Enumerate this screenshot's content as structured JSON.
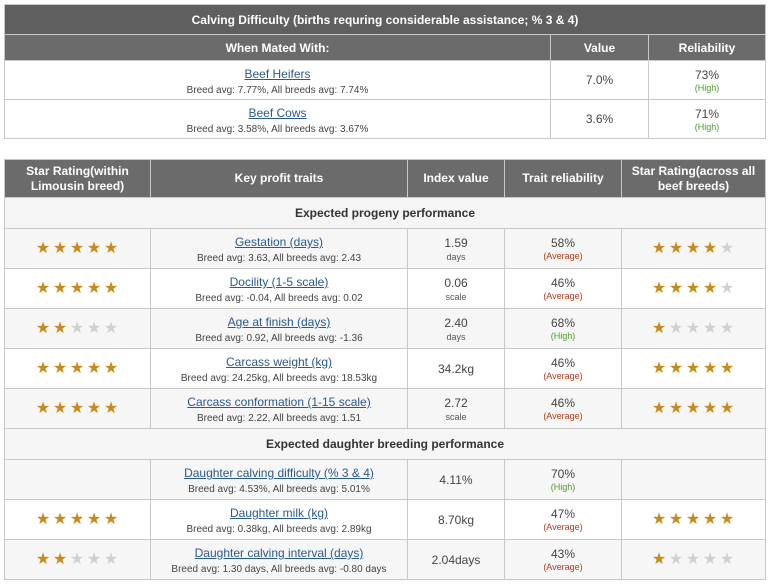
{
  "calving": {
    "title": "Calving Difficulty (births requring considerable assistance; % 3 & 4)",
    "col_mated": "When Mated With:",
    "col_value": "Value",
    "col_reliability": "Reliability",
    "rows": [
      {
        "label": "Beef Heifers",
        "avg": "Breed avg: 7.77%, All breeds avg: 7.74%",
        "value": "7.0%",
        "reliability": "73%",
        "level": "(High)"
      },
      {
        "label": "Beef Cows",
        "avg": "Breed avg: 3.58%, All breeds avg: 3.67%",
        "value": "3.6%",
        "reliability": "71%",
        "level": "(High)"
      }
    ]
  },
  "traits": {
    "col_star_within": "Star Rating",
    "col_star_within_sub": "(within Limousin breed)",
    "col_key": "Key profit traits",
    "col_index": "Index value",
    "col_reliability": "Trait reliability",
    "col_star_across": "Star Rating",
    "col_star_across_sub": "(across all beef breeds)",
    "section_progeny": "Expected progeny performance",
    "section_daughter": "Expected daughter breeding performance",
    "progeny": [
      {
        "label": "Gestation (days)",
        "avg": "Breed avg: 3.63, All breeds avg: 2.43",
        "value": "1.59",
        "unit": "days",
        "reliability": "58%",
        "level": "(Average)",
        "stars_within": 5,
        "stars_across": 4
      },
      {
        "label": "Docility (1-5 scale)",
        "avg": "Breed avg: -0.04, All breeds avg: 0.02",
        "value": "0.06",
        "unit": "scale",
        "reliability": "46%",
        "level": "(Average)",
        "stars_within": 5,
        "stars_across": 4
      },
      {
        "label": "Age at finish (days)",
        "avg": "Breed avg: 0.92, All breeds avg: -1.36",
        "value": "2.40",
        "unit": "days",
        "reliability": "68%",
        "level": "(High)",
        "stars_within": 2,
        "stars_across": 1
      },
      {
        "label": "Carcass weight (kg)",
        "avg": "Breed avg: 24.25kg, All breeds avg: 18.53kg",
        "value": "34.2kg",
        "unit": "",
        "reliability": "46%",
        "level": "(Average)",
        "stars_within": 5,
        "stars_across": 5
      },
      {
        "label": "Carcass conformation (1-15 scale)",
        "avg": "Breed avg: 2.22, All breeds avg: 1.51",
        "value": "2.72",
        "unit": "scale",
        "reliability": "46%",
        "level": "(Average)",
        "stars_within": 5,
        "stars_across": 5
      }
    ],
    "daughter": [
      {
        "label": "Daughter calving difficulty (% 3 & 4)",
        "avg": "Breed avg: 4.53%, All breeds avg: 5.01%",
        "value": "4.11%",
        "unit": "",
        "reliability": "70%",
        "level": "(High)",
        "stars_within": 0,
        "stars_across": 0
      },
      {
        "label": "Daughter milk (kg)",
        "avg": "Breed avg: 0.38kg, All breeds avg: 2.89kg",
        "value": "8.70kg",
        "unit": "",
        "reliability": "47%",
        "level": "(Average)",
        "stars_within": 5,
        "stars_across": 5
      },
      {
        "label": "Daughter calving interval (days)",
        "avg": "Breed avg: 1.30 days, All breeds avg: -0.80 days",
        "value": "2.04days",
        "unit": "",
        "reliability": "43%",
        "level": "(Average)",
        "stars_within": 2,
        "stars_across": 1
      }
    ]
  },
  "colors": {
    "header_bg": "#6b6b6b",
    "star_on": "#c98a1c",
    "star_off": "#d0d0d0",
    "link": "#2a5a8c",
    "high": "#4a9a2a",
    "average": "#b33a1a"
  }
}
